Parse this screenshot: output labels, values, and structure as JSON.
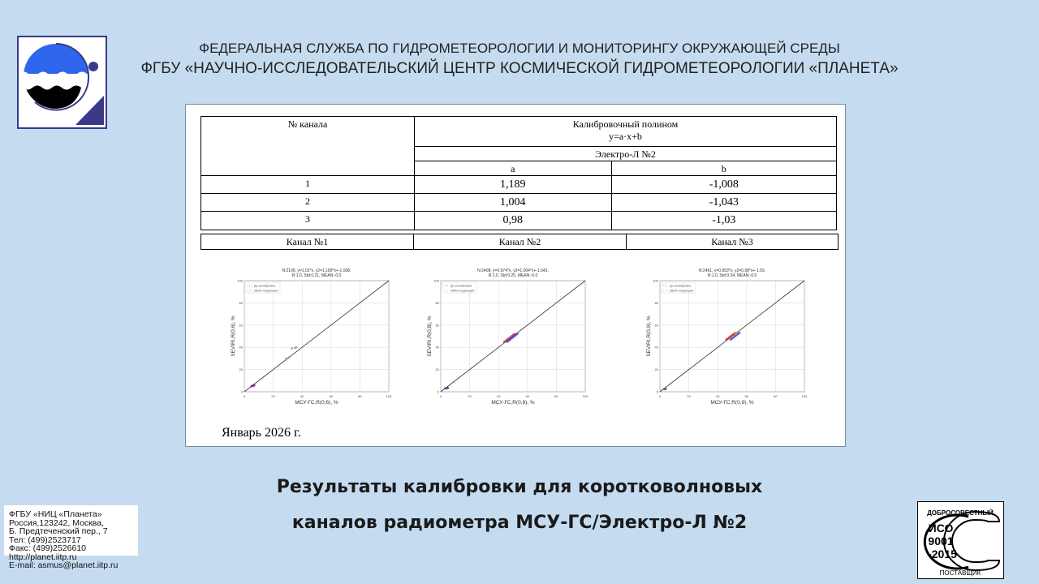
{
  "header": {
    "line1": "ФЕДЕРАЛЬНАЯ СЛУЖБА ПО ГИДРОМЕТЕОРОЛОГИИ И МОНИТОРИНГУ ОКРУЖАЮЩЕЙ СРЕДЫ",
    "line2": "ФГБУ «НАУЧНО-ИССЛЕДОВАТЕЛЬСКИЙ ЦЕНТР КОСМИЧЕСКОЙ ГИДРОМЕТЕОРОЛОГИИ «ПЛАНЕТА»"
  },
  "table": {
    "col_channel": "№ канала",
    "col_poly": "Калибровочный полином",
    "formula": "y=a·x+b",
    "satellite": "Электро-Л №2",
    "a": "a",
    "b": "b",
    "rows": [
      {
        "ch": "1",
        "a": "1,189",
        "b": "-1,008"
      },
      {
        "ch": "2",
        "a": "1,004",
        "b": "-1,043"
      },
      {
        "ch": "3",
        "a": "0,98",
        "b": "-1,03"
      }
    ]
  },
  "channels": [
    "Канал №1",
    "Канал №2",
    "Канал №3"
  ],
  "chart_data": [
    {
      "type": "scatter",
      "title": "N:2106, y=1.02*x, y2=1.189*x+-1.008,",
      "subtitle": "R:1.0, Std:0.21, MEAN:-0.0",
      "xlabel": "МСУ-ГС,R(0,6), %",
      "ylabel": "SEVIRI,R(0,6), %",
      "xlim": [
        0,
        100
      ],
      "ylim": [
        0,
        100
      ],
      "ticks": [
        "0",
        "20",
        "40",
        "60",
        "80",
        "100"
      ],
      "grid": true,
      "legend": [
        "До калибровки",
        "SBAF коррекция"
      ],
      "legend_placement": "top-left",
      "series": [
        {
          "name": "До калибровки",
          "color": "#d02030",
          "points": [
            [
              5,
              5
            ],
            [
              6,
              5.5
            ],
            [
              6.5,
              6
            ],
            [
              7,
              5.8
            ],
            [
              5.5,
              5.2
            ]
          ]
        },
        {
          "name": "SBAF коррекция",
          "color": "#3040c0",
          "points": [
            [
              5.2,
              5
            ],
            [
              6.2,
              5.6
            ]
          ]
        },
        {
          "color": "#999999",
          "points": [
            [
              29,
              30
            ],
            [
              31,
              31
            ],
            [
              33,
              39
            ],
            [
              35,
              39.5
            ],
            [
              36,
              40
            ]
          ]
        }
      ]
    },
    {
      "type": "scatter",
      "title": "N:2408, y=0.974*x, y2=1.004*x+-1.043,",
      "subtitle": "R:1.0, Std:0.25, MEAN:-0.0",
      "xlabel": "МСУ-ГС,R(0,8), %",
      "ylabel": "SEVIRI,R(0,8), %",
      "xlim": [
        0,
        100
      ],
      "ylim": [
        0,
        100
      ],
      "ticks": [
        "0",
        "20",
        "40",
        "60",
        "80",
        "100"
      ],
      "grid": true,
      "legend": [
        "До калибровки",
        "SBAF коррекция"
      ],
      "legend_placement": "top-left",
      "series": [
        {
          "name": "До калибровки",
          "color": "#d02030",
          "points": [
            [
              44,
              45
            ],
            [
              45,
              46
            ],
            [
              46,
              47
            ],
            [
              47,
              48
            ],
            [
              48,
              49
            ],
            [
              49,
              50
            ],
            [
              50,
              51
            ],
            [
              51,
              52
            ],
            [
              3,
              3
            ],
            [
              4,
              3.5
            ]
          ]
        },
        {
          "name": "SBAF коррекция",
          "color": "#3040c0",
          "points": [
            [
              46,
              45
            ],
            [
              47,
              46
            ],
            [
              48,
              47
            ],
            [
              49,
              48
            ],
            [
              50,
              49
            ],
            [
              51,
              50
            ],
            [
              52,
              51
            ],
            [
              53,
              52
            ],
            [
              4,
              3
            ],
            [
              5,
              3.5
            ]
          ]
        }
      ]
    },
    {
      "type": "scatter",
      "title": "N:2461, y=0.953*x, y2=0.98*x+-1.03,",
      "subtitle": "R:1.0, Std:0.34, MEAN:-0.0",
      "xlabel": "МСУ-ГС,R(0,9), %",
      "ylabel": "SEVIRI,R(0,9), %",
      "xlim": [
        0,
        100
      ],
      "ylim": [
        0,
        100
      ],
      "ticks": [
        "0",
        "20",
        "40",
        "60",
        "80",
        "100"
      ],
      "grid": true,
      "legend": [
        "До калибровки",
        "SBAF коррекция"
      ],
      "legend_placement": "top-left",
      "series": [
        {
          "name": "До калибровки",
          "color": "#d02030",
          "points": [
            [
              46,
              47
            ],
            [
              47,
              48
            ],
            [
              48,
              49
            ],
            [
              49,
              50
            ],
            [
              50,
              51
            ],
            [
              51,
              52
            ],
            [
              52,
              53
            ],
            [
              3,
              2.5
            ]
          ]
        },
        {
          "name": "SBAF коррекция",
          "color": "#3040c0",
          "points": [
            [
              49,
              47
            ],
            [
              50,
              48
            ],
            [
              51,
              49
            ],
            [
              52,
              50
            ],
            [
              53,
              51
            ],
            [
              54,
              52
            ],
            [
              55,
              53
            ],
            [
              4,
              2.5
            ]
          ]
        },
        {
          "color": "#e0a020",
          "points": [
            [
              52,
              53
            ],
            [
              54,
              54
            ]
          ]
        }
      ]
    }
  ],
  "date": "Январь 2026 г.",
  "title": {
    "line1": "Результаты калибровки для коротковолновых",
    "line2": "каналов радиометра МСУ-ГС/Электро-Л №2"
  },
  "contact": {
    "org": "ФГБУ «НИЦ «Планета»",
    "addr1": "Россия,123242, Москва,",
    "addr2": "Б. Предтеченский пер., 7",
    "tel": "Тел:   (499)2523717",
    "fax": "Факс:  (499)2526610",
    "web": "http://planet.iitp.ru",
    "email": "E-mail: asmus@planet.iitp.ru"
  },
  "iso": {
    "top": "ДОБРОСОВЕСТНЫЙ",
    "l1": "ИСО",
    "l2": "9001",
    "l3": "-2015",
    "bottom": "ПОСТАВЩИК"
  },
  "colors": {
    "background": "#c5dcf0",
    "logo_blue": "#2f66ee",
    "logo_navy": "#3a3a8a"
  }
}
